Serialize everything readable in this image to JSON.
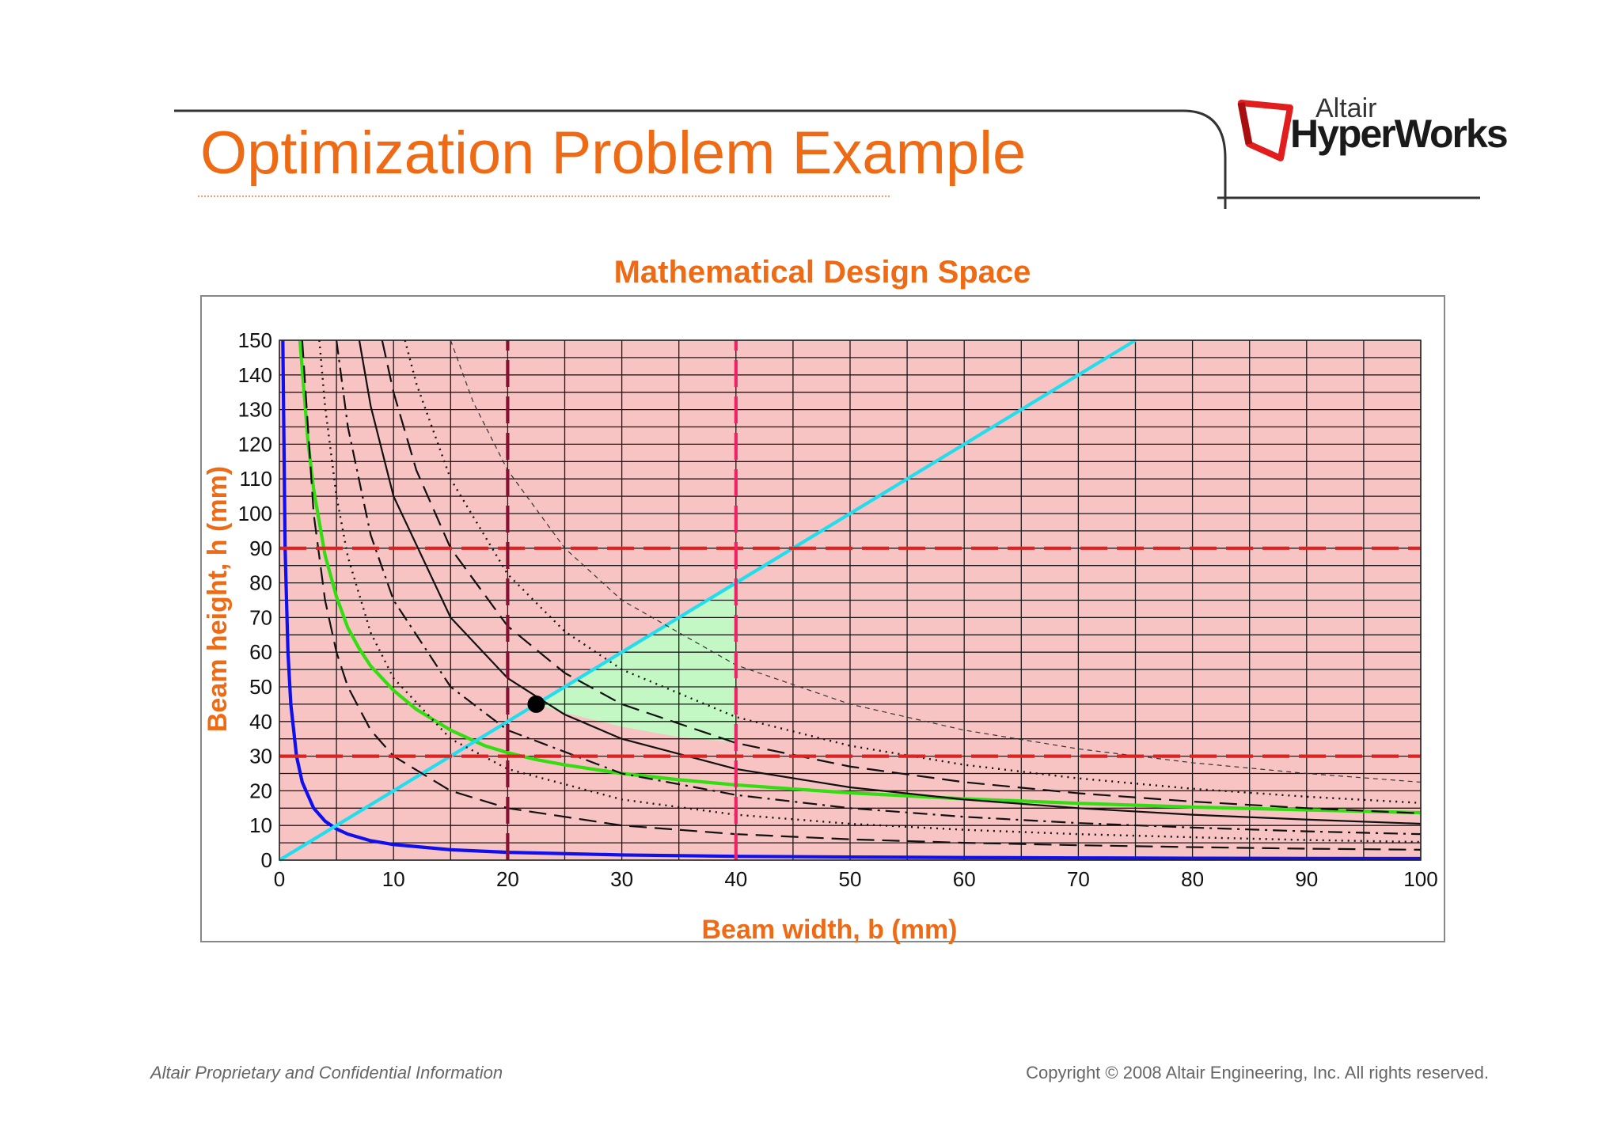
{
  "slide": {
    "title": "Optimization Problem Example",
    "footer_left": "Altair Proprietary and Confidential Information",
    "footer_right": "Copyright © 2008 Altair Engineering, Inc. All rights reserved.",
    "title_color": "#ee6a14"
  },
  "logo": {
    "company": "Altair",
    "product": "HyperWorks"
  },
  "chart_data": {
    "type": "line",
    "title": "Mathematical Design Space",
    "xlabel": "Beam width, b (mm)",
    "ylabel": "Beam height, h (mm)",
    "xlim": [
      0,
      100
    ],
    "ylim": [
      0,
      150
    ],
    "x_ticks": [
      "0",
      "10",
      "20",
      "30",
      "40",
      "50",
      "60",
      "70",
      "80",
      "90",
      "100"
    ],
    "y_ticks": [
      "0",
      "10",
      "20",
      "30",
      "40",
      "50",
      "60",
      "70",
      "80",
      "90",
      "100",
      "110",
      "120",
      "130",
      "140",
      "150"
    ],
    "grid": true,
    "colors": {
      "plot_background": "#f7c3c3",
      "feasible_region": "#c3f7c3",
      "grid": "#1a1a1a",
      "blue_curve": "#1010ee",
      "green_curve": "#33dd11",
      "cyan_line": "#22ddee",
      "bound_h": "#dd2222",
      "bound_b_20": "#881133",
      "bound_b_40": "#ee2266",
      "optimum_marker": "#000000"
    },
    "feasible_region": {
      "vertices": [
        [
          22.5,
          45
        ],
        [
          25,
          50
        ],
        [
          30,
          60
        ],
        [
          35,
          70
        ],
        [
          40,
          80
        ],
        [
          40,
          34
        ],
        [
          35,
          35.5
        ],
        [
          30,
          38.5
        ],
        [
          25,
          42.5
        ]
      ]
    },
    "optimum": {
      "x": 22.5,
      "y": 45
    },
    "series": [
      {
        "style": "solid",
        "color": "#1010ee",
        "x": [
          0.3,
          0.5,
          0.75,
          1,
          1.5,
          2,
          3,
          4,
          5,
          6,
          8,
          10,
          15,
          20,
          30,
          40,
          50,
          60,
          70,
          80,
          90,
          100
        ],
        "y": [
          150,
          90,
          60,
          45,
          30,
          22.5,
          15,
          11.25,
          9,
          7.5,
          5.6,
          4.5,
          3,
          2.25,
          1.5,
          1.1,
          0.9,
          0.75,
          0.64,
          0.56,
          0.5,
          0.45
        ]
      },
      {
        "style": "solid",
        "color": "#33dd11",
        "x": [
          1.8,
          2.5,
          3,
          4,
          5,
          6,
          7,
          8,
          10,
          12,
          15,
          18,
          20,
          22.5,
          25,
          30,
          35,
          40,
          50,
          60,
          70,
          80,
          90,
          100
        ],
        "y": [
          150,
          121,
          107,
          88,
          76,
          67,
          61,
          56,
          49,
          43.5,
          37.5,
          33,
          31,
          29,
          27.5,
          25,
          23.2,
          21.7,
          19.4,
          17.7,
          16.4,
          15.3,
          14.5,
          13.7
        ]
      },
      {
        "style": "solid",
        "color": "#22ddee",
        "x": [
          0,
          75
        ],
        "y": [
          0,
          150
        ]
      },
      {
        "style": "dashed",
        "color": "#111111",
        "x": [
          2,
          3,
          4,
          5,
          6,
          8,
          10,
          15,
          20,
          30,
          40,
          50,
          60,
          70,
          80,
          90,
          100
        ],
        "y": [
          150,
          100,
          75,
          60,
          50,
          37.5,
          30,
          20,
          15,
          10,
          7.5,
          6,
          5,
          4.3,
          3.75,
          3.3,
          3
        ]
      },
      {
        "style": "dotted",
        "color": "#111111",
        "x": [
          3.5,
          4,
          5,
          6,
          8,
          10,
          15,
          20,
          30,
          40,
          50,
          60,
          70,
          80,
          90,
          100
        ],
        "y": [
          150,
          131,
          105,
          87.5,
          65.6,
          52.5,
          35,
          26.3,
          17.5,
          13.1,
          10.5,
          8.75,
          7.5,
          6.6,
          5.8,
          5.25
        ]
      },
      {
        "style": "dashdot",
        "color": "#111111",
        "x": [
          5,
          6,
          8,
          10,
          15,
          20,
          30,
          40,
          50,
          60,
          70,
          80,
          90,
          100
        ],
        "y": [
          150,
          125,
          93.8,
          75,
          50,
          37.5,
          25,
          18.8,
          15,
          12.5,
          10.7,
          9.4,
          8.3,
          7.5
        ]
      },
      {
        "style": "solid",
        "color": "#111111",
        "x": [
          7,
          8,
          10,
          15,
          20,
          25,
          30,
          40,
          50,
          60,
          70,
          80,
          90,
          100
        ],
        "y": [
          150,
          131,
          105,
          70,
          52.5,
          42,
          35,
          26.3,
          21,
          17.5,
          15,
          13.1,
          11.7,
          10.5
        ]
      },
      {
        "style": "dashed",
        "color": "#111111",
        "x": [
          9,
          10,
          12,
          15,
          20,
          25,
          30,
          40,
          50,
          60,
          70,
          80,
          90,
          100
        ],
        "y": [
          150,
          135,
          112.5,
          90,
          67.5,
          54,
          45,
          33.8,
          27,
          22.5,
          19.3,
          16.9,
          15,
          13.5
        ]
      },
      {
        "style": "dotted",
        "color": "#111111",
        "x": [
          11,
          12,
          15,
          20,
          25,
          30,
          40,
          50,
          60,
          70,
          80,
          90,
          100
        ],
        "y": [
          150,
          137.5,
          110,
          82.5,
          66,
          55,
          41.3,
          33,
          27.5,
          23.6,
          20.6,
          18.3,
          16.5
        ]
      },
      {
        "style": "thin-dashed",
        "color": "#333333",
        "x": [
          15,
          17,
          20,
          25,
          30,
          40,
          50,
          60,
          70,
          80,
          90,
          100
        ],
        "y": [
          150,
          132,
          112.5,
          90,
          75,
          56.3,
          45,
          37.5,
          32.1,
          28.1,
          25,
          22.5
        ]
      },
      {
        "style": "dashed",
        "color": "#dd2222",
        "x": [
          0,
          100
        ],
        "y": [
          90,
          90
        ]
      },
      {
        "style": "dashed",
        "color": "#dd2222",
        "x": [
          0,
          100
        ],
        "y": [
          30,
          30
        ]
      },
      {
        "style": "dashed",
        "color": "#881133",
        "x": [
          20,
          20
        ],
        "y": [
          0,
          150
        ]
      },
      {
        "style": "dashed",
        "color": "#ee2266",
        "x": [
          40,
          40
        ],
        "y": [
          0,
          150
        ]
      }
    ]
  }
}
